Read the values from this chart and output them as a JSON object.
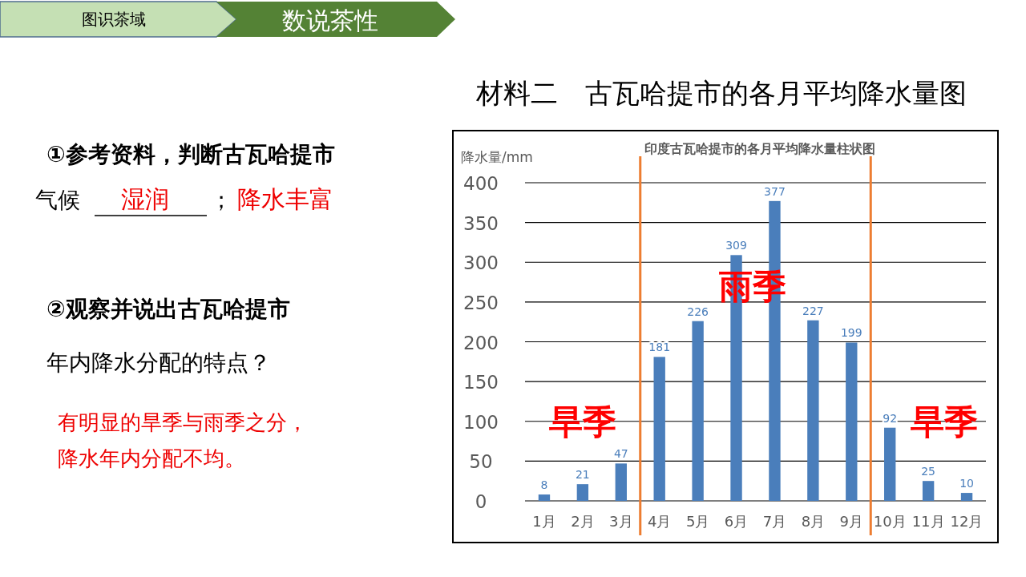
{
  "chart_data": {
    "type": "bar",
    "title": "材料二　古瓦哈提市的各月平均降水量图",
    "subtitle": "印度古瓦哈提市的各月平均降水量柱状图",
    "ylabel": "降水量/mm",
    "categories": [
      "1月",
      "2月",
      "3月",
      "4月",
      "5月",
      "6月",
      "7月",
      "8月",
      "9月",
      "10月",
      "11月",
      "12月"
    ],
    "values": [
      8,
      21,
      47,
      181,
      226,
      309,
      377,
      227,
      199,
      92,
      25,
      10
    ],
    "color": "#4a7ebb",
    "data_labels": true,
    "grid": "y",
    "ylim": [
      0,
      400
    ],
    "yticks": [
      0,
      50,
      100,
      150,
      200,
      250,
      300,
      350,
      400
    ],
    "annotations": [
      "图识茶域",
      "数说茶性",
      "①参考资料，判断古瓦哈提市",
      "气候",
      "湿润",
      "；",
      "降水丰富",
      "②观察并说出古瓦哈提市",
      "年内降水分配的特点？",
      "有明显的旱季与雨季之分，",
      "降水年内分配不均。",
      "旱季",
      "旱季",
      "雨季"
    ]
  }
}
